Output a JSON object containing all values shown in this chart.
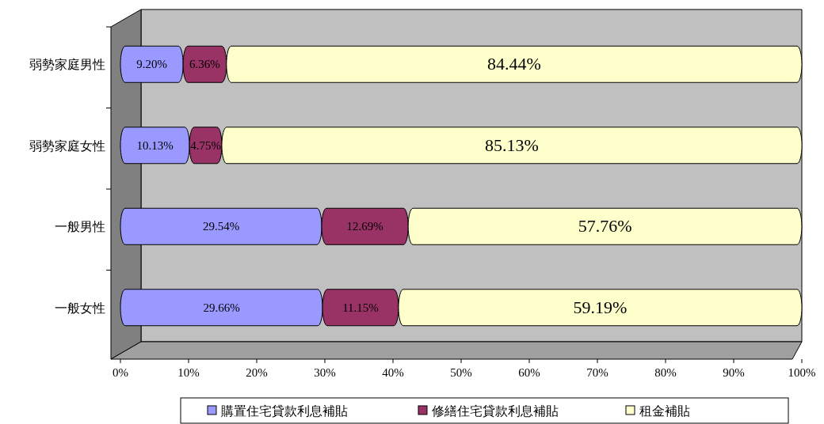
{
  "chart_data": {
    "type": "bar",
    "orientation": "horizontal",
    "stacked": true,
    "legend": "bottom",
    "categories": [
      "弱勢家庭男性",
      "弱勢家庭女性",
      "一般男性",
      "一般女性"
    ],
    "xlim": [
      0,
      100
    ],
    "xticks": [
      {
        "value": 0,
        "label": "0%"
      },
      {
        "value": 10,
        "label": "10%"
      },
      {
        "value": 20,
        "label": "20%"
      },
      {
        "value": 30,
        "label": "30%"
      },
      {
        "value": 40,
        "label": "40%"
      },
      {
        "value": 50,
        "label": "50%"
      },
      {
        "value": 60,
        "label": "60%"
      },
      {
        "value": 70,
        "label": "70%"
      },
      {
        "value": 80,
        "label": "80%"
      },
      {
        "value": 90,
        "label": "90%"
      },
      {
        "value": 100,
        "label": "100%"
      }
    ],
    "series": [
      {
        "name": "購置住宅貸款利息補貼",
        "color": "#9999ff",
        "values": [
          9.2,
          10.13,
          29.54,
          29.66
        ],
        "value_labels": [
          "9.20%",
          "10.13%",
          "29.54%",
          "29.66%"
        ]
      },
      {
        "name": "修繕住宅貸款利息補貼",
        "color": "#993366",
        "values": [
          6.36,
          4.75,
          12.69,
          11.15
        ],
        "value_labels": [
          "6.36%",
          "4.75%",
          "12.69%",
          "11.15%"
        ]
      },
      {
        "name": "租金補貼",
        "color": "#ffffcc",
        "values": [
          84.44,
          85.13,
          57.76,
          59.19
        ],
        "value_labels": [
          "84.44%",
          "85.13%",
          "57.76%",
          "59.19%"
        ]
      }
    ]
  }
}
